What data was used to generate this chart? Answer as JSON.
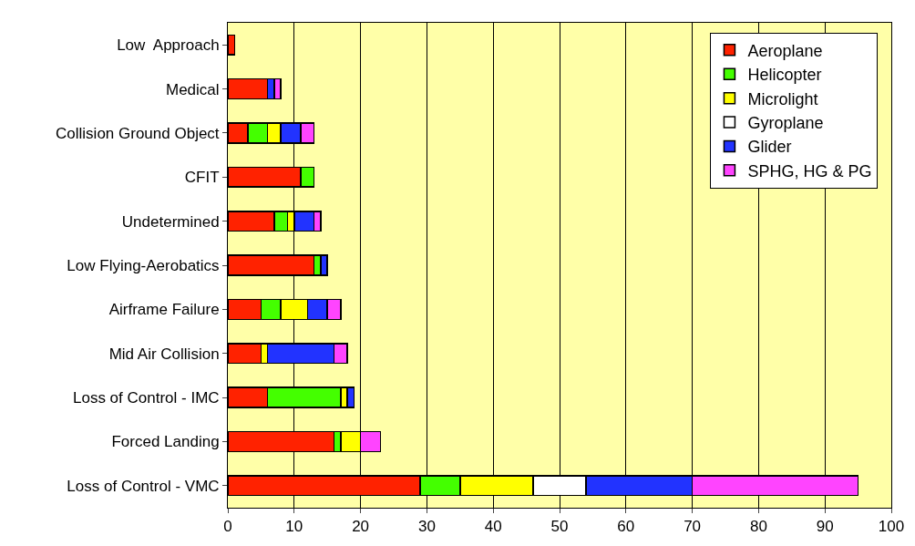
{
  "chart_data": {
    "type": "bar",
    "orientation": "horizontal",
    "stacked": true,
    "categories": [
      "Low  Approach",
      "Medical",
      "Collision Ground Object",
      "CFIT",
      "Undetermined",
      "Low Flying-Aerobatics",
      "Airframe Failure",
      "Mid Air Collision",
      "Loss of Control - IMC",
      "Forced Landing",
      "Loss of Control - VMC"
    ],
    "series": [
      {
        "name": "Aeroplane",
        "color": "#ff2200",
        "values": [
          1,
          6,
          3,
          11,
          7,
          13,
          5,
          5,
          6,
          16,
          29
        ]
      },
      {
        "name": "Helicopter",
        "color": "#44ff00",
        "values": [
          null,
          null,
          3,
          2,
          2,
          1,
          3,
          null,
          11,
          1,
          6
        ]
      },
      {
        "name": "Microlight",
        "color": "#ffff00",
        "values": [
          null,
          null,
          2,
          null,
          1,
          null,
          4,
          1,
          1,
          3,
          11
        ]
      },
      {
        "name": "Gyroplane",
        "color": "#ffffff",
        "values": [
          null,
          null,
          null,
          null,
          null,
          null,
          null,
          null,
          null,
          null,
          8
        ]
      },
      {
        "name": "Glider",
        "color": "#2233ff",
        "values": [
          null,
          1,
          3,
          null,
          3,
          1,
          3,
          10,
          1,
          null,
          16
        ]
      },
      {
        "name": "SPHG, HG & PG",
        "color": "#ff44ff",
        "values": [
          null,
          1,
          2,
          null,
          1,
          null,
          2,
          2,
          null,
          3,
          25
        ]
      }
    ],
    "xlim": [
      0,
      100
    ],
    "xticks": [
      0,
      10,
      20,
      30,
      40,
      50,
      60,
      70,
      80,
      90,
      100
    ],
    "grid": "x",
    "legend": "top right"
  }
}
